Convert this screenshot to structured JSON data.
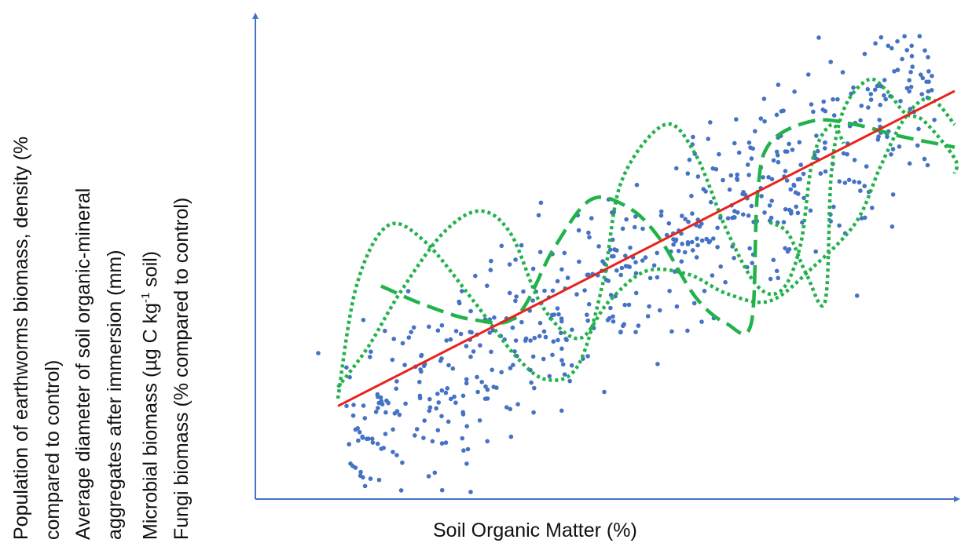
{
  "chart_data": {
    "type": "scatter",
    "title": "",
    "xlabel": "Soil Organic Matter (%)",
    "ylabel_lines": [
      "Population of earthworms biomass, density (%",
      "compared to control)",
      "Average diameter of soil organic-mineral",
      "aggregates after immersion (mm)",
      [
        "Microbial biomass (µg C kg",
        "-1",
        " soil)"
      ],
      "Fungi biomass (% compared to control)"
    ],
    "axis_ticks": "none",
    "grid": false,
    "legend": "none",
    "colors": {
      "axis": "#4472c4",
      "points": "#4472c4",
      "trend": "#e8231b",
      "curves": "#22b24c"
    },
    "point_count": 600,
    "trend_line": {
      "from": [
        0,
        0.11
      ],
      "to": [
        1,
        0.95
      ]
    },
    "curves": [
      {
        "style": "dotted",
        "points": [
          [
            0,
            0.13
          ],
          [
            0.03,
            0.43
          ],
          [
            0.08,
            0.59
          ],
          [
            0.14,
            0.55
          ],
          [
            0.22,
            0.39
          ],
          [
            0.29,
            0.24
          ],
          [
            0.34,
            0.18
          ],
          [
            0.39,
            0.22
          ],
          [
            0.43,
            0.44
          ],
          [
            0.46,
            0.71
          ],
          [
            0.53,
            0.86
          ],
          [
            0.58,
            0.78
          ],
          [
            0.63,
            0.58
          ],
          [
            0.68,
            0.43
          ],
          [
            0.72,
            0.42
          ],
          [
            0.75,
            0.54
          ],
          [
            0.77,
            0.77
          ],
          [
            0.8,
            0.86
          ],
          [
            0.82,
            0.81
          ]
        ]
      },
      {
        "style": "dotted",
        "points": [
          [
            0,
            0.16
          ],
          [
            0.05,
            0.27
          ],
          [
            0.1,
            0.41
          ],
          [
            0.17,
            0.57
          ],
          [
            0.23,
            0.63
          ],
          [
            0.28,
            0.57
          ],
          [
            0.33,
            0.38
          ],
          [
            0.39,
            0.29
          ],
          [
            0.44,
            0.39
          ],
          [
            0.5,
            0.47
          ],
          [
            0.57,
            0.46
          ],
          [
            0.63,
            0.41
          ],
          [
            0.7,
            0.39
          ],
          [
            0.77,
            0.48
          ],
          [
            0.84,
            0.6
          ],
          [
            0.88,
            0.75
          ],
          [
            0.92,
            0.88
          ],
          [
            0.96,
            0.93
          ],
          [
            1,
            0.86
          ]
        ]
      },
      {
        "style": "dotted",
        "points": [
          [
            0.7,
            0.6
          ],
          [
            0.73,
            0.57
          ],
          [
            0.76,
            0.46
          ],
          [
            0.79,
            0.39
          ],
          [
            0.8,
            0.73
          ],
          [
            0.82,
            0.9
          ],
          [
            0.86,
            0.98
          ],
          [
            0.89,
            0.95
          ],
          [
            0.92,
            0.89
          ],
          [
            0.95,
            0.87
          ],
          [
            1,
            0.77
          ],
          [
            1,
            0.73
          ]
        ]
      },
      {
        "style": "dashed",
        "points": [
          [
            0.07,
            0.43
          ],
          [
            0.14,
            0.38
          ],
          [
            0.22,
            0.34
          ],
          [
            0.29,
            0.35
          ],
          [
            0.35,
            0.53
          ],
          [
            0.41,
            0.66
          ],
          [
            0.47,
            0.64
          ],
          [
            0.52,
            0.56
          ],
          [
            0.58,
            0.4
          ],
          [
            0.63,
            0.33
          ],
          [
            0.67,
            0.33
          ],
          [
            0.68,
            0.67
          ],
          [
            0.7,
            0.81
          ],
          [
            0.77,
            0.87
          ],
          [
            0.84,
            0.86
          ],
          [
            0.91,
            0.83
          ],
          [
            1,
            0.8
          ]
        ]
      }
    ]
  }
}
